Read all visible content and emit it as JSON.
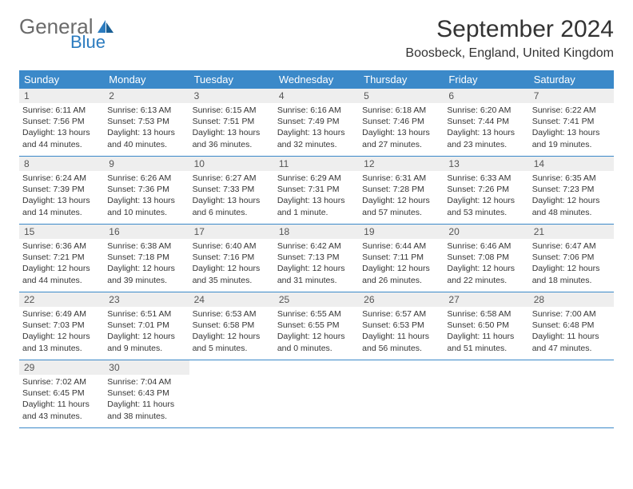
{
  "logo": {
    "line1": "General",
    "line2": "Blue"
  },
  "title": "September 2024",
  "location": "Boosbeck, England, United Kingdom",
  "colors": {
    "header_bg": "#3b89c9",
    "header_text": "#ffffff",
    "daynum_bg": "#eeeeee",
    "daynum_text": "#555555",
    "body_text": "#353535",
    "border": "#3b89c9",
    "logo_gray": "#6b6b6b",
    "logo_blue": "#2b7bbf"
  },
  "weekdays": [
    "Sunday",
    "Monday",
    "Tuesday",
    "Wednesday",
    "Thursday",
    "Friday",
    "Saturday"
  ],
  "weeks": [
    [
      {
        "n": "1",
        "sr": "Sunrise: 6:11 AM",
        "ss": "Sunset: 7:56 PM",
        "dl1": "Daylight: 13 hours",
        "dl2": "and 44 minutes."
      },
      {
        "n": "2",
        "sr": "Sunrise: 6:13 AM",
        "ss": "Sunset: 7:53 PM",
        "dl1": "Daylight: 13 hours",
        "dl2": "and 40 minutes."
      },
      {
        "n": "3",
        "sr": "Sunrise: 6:15 AM",
        "ss": "Sunset: 7:51 PM",
        "dl1": "Daylight: 13 hours",
        "dl2": "and 36 minutes."
      },
      {
        "n": "4",
        "sr": "Sunrise: 6:16 AM",
        "ss": "Sunset: 7:49 PM",
        "dl1": "Daylight: 13 hours",
        "dl2": "and 32 minutes."
      },
      {
        "n": "5",
        "sr": "Sunrise: 6:18 AM",
        "ss": "Sunset: 7:46 PM",
        "dl1": "Daylight: 13 hours",
        "dl2": "and 27 minutes."
      },
      {
        "n": "6",
        "sr": "Sunrise: 6:20 AM",
        "ss": "Sunset: 7:44 PM",
        "dl1": "Daylight: 13 hours",
        "dl2": "and 23 minutes."
      },
      {
        "n": "7",
        "sr": "Sunrise: 6:22 AM",
        "ss": "Sunset: 7:41 PM",
        "dl1": "Daylight: 13 hours",
        "dl2": "and 19 minutes."
      }
    ],
    [
      {
        "n": "8",
        "sr": "Sunrise: 6:24 AM",
        "ss": "Sunset: 7:39 PM",
        "dl1": "Daylight: 13 hours",
        "dl2": "and 14 minutes."
      },
      {
        "n": "9",
        "sr": "Sunrise: 6:26 AM",
        "ss": "Sunset: 7:36 PM",
        "dl1": "Daylight: 13 hours",
        "dl2": "and 10 minutes."
      },
      {
        "n": "10",
        "sr": "Sunrise: 6:27 AM",
        "ss": "Sunset: 7:33 PM",
        "dl1": "Daylight: 13 hours",
        "dl2": "and 6 minutes."
      },
      {
        "n": "11",
        "sr": "Sunrise: 6:29 AM",
        "ss": "Sunset: 7:31 PM",
        "dl1": "Daylight: 13 hours",
        "dl2": "and 1 minute."
      },
      {
        "n": "12",
        "sr": "Sunrise: 6:31 AM",
        "ss": "Sunset: 7:28 PM",
        "dl1": "Daylight: 12 hours",
        "dl2": "and 57 minutes."
      },
      {
        "n": "13",
        "sr": "Sunrise: 6:33 AM",
        "ss": "Sunset: 7:26 PM",
        "dl1": "Daylight: 12 hours",
        "dl2": "and 53 minutes."
      },
      {
        "n": "14",
        "sr": "Sunrise: 6:35 AM",
        "ss": "Sunset: 7:23 PM",
        "dl1": "Daylight: 12 hours",
        "dl2": "and 48 minutes."
      }
    ],
    [
      {
        "n": "15",
        "sr": "Sunrise: 6:36 AM",
        "ss": "Sunset: 7:21 PM",
        "dl1": "Daylight: 12 hours",
        "dl2": "and 44 minutes."
      },
      {
        "n": "16",
        "sr": "Sunrise: 6:38 AM",
        "ss": "Sunset: 7:18 PM",
        "dl1": "Daylight: 12 hours",
        "dl2": "and 39 minutes."
      },
      {
        "n": "17",
        "sr": "Sunrise: 6:40 AM",
        "ss": "Sunset: 7:16 PM",
        "dl1": "Daylight: 12 hours",
        "dl2": "and 35 minutes."
      },
      {
        "n": "18",
        "sr": "Sunrise: 6:42 AM",
        "ss": "Sunset: 7:13 PM",
        "dl1": "Daylight: 12 hours",
        "dl2": "and 31 minutes."
      },
      {
        "n": "19",
        "sr": "Sunrise: 6:44 AM",
        "ss": "Sunset: 7:11 PM",
        "dl1": "Daylight: 12 hours",
        "dl2": "and 26 minutes."
      },
      {
        "n": "20",
        "sr": "Sunrise: 6:46 AM",
        "ss": "Sunset: 7:08 PM",
        "dl1": "Daylight: 12 hours",
        "dl2": "and 22 minutes."
      },
      {
        "n": "21",
        "sr": "Sunrise: 6:47 AM",
        "ss": "Sunset: 7:06 PM",
        "dl1": "Daylight: 12 hours",
        "dl2": "and 18 minutes."
      }
    ],
    [
      {
        "n": "22",
        "sr": "Sunrise: 6:49 AM",
        "ss": "Sunset: 7:03 PM",
        "dl1": "Daylight: 12 hours",
        "dl2": "and 13 minutes."
      },
      {
        "n": "23",
        "sr": "Sunrise: 6:51 AM",
        "ss": "Sunset: 7:01 PM",
        "dl1": "Daylight: 12 hours",
        "dl2": "and 9 minutes."
      },
      {
        "n": "24",
        "sr": "Sunrise: 6:53 AM",
        "ss": "Sunset: 6:58 PM",
        "dl1": "Daylight: 12 hours",
        "dl2": "and 5 minutes."
      },
      {
        "n": "25",
        "sr": "Sunrise: 6:55 AM",
        "ss": "Sunset: 6:55 PM",
        "dl1": "Daylight: 12 hours",
        "dl2": "and 0 minutes."
      },
      {
        "n": "26",
        "sr": "Sunrise: 6:57 AM",
        "ss": "Sunset: 6:53 PM",
        "dl1": "Daylight: 11 hours",
        "dl2": "and 56 minutes."
      },
      {
        "n": "27",
        "sr": "Sunrise: 6:58 AM",
        "ss": "Sunset: 6:50 PM",
        "dl1": "Daylight: 11 hours",
        "dl2": "and 51 minutes."
      },
      {
        "n": "28",
        "sr": "Sunrise: 7:00 AM",
        "ss": "Sunset: 6:48 PM",
        "dl1": "Daylight: 11 hours",
        "dl2": "and 47 minutes."
      }
    ],
    [
      {
        "n": "29",
        "sr": "Sunrise: 7:02 AM",
        "ss": "Sunset: 6:45 PM",
        "dl1": "Daylight: 11 hours",
        "dl2": "and 43 minutes."
      },
      {
        "n": "30",
        "sr": "Sunrise: 7:04 AM",
        "ss": "Sunset: 6:43 PM",
        "dl1": "Daylight: 11 hours",
        "dl2": "and 38 minutes."
      },
      null,
      null,
      null,
      null,
      null
    ]
  ]
}
